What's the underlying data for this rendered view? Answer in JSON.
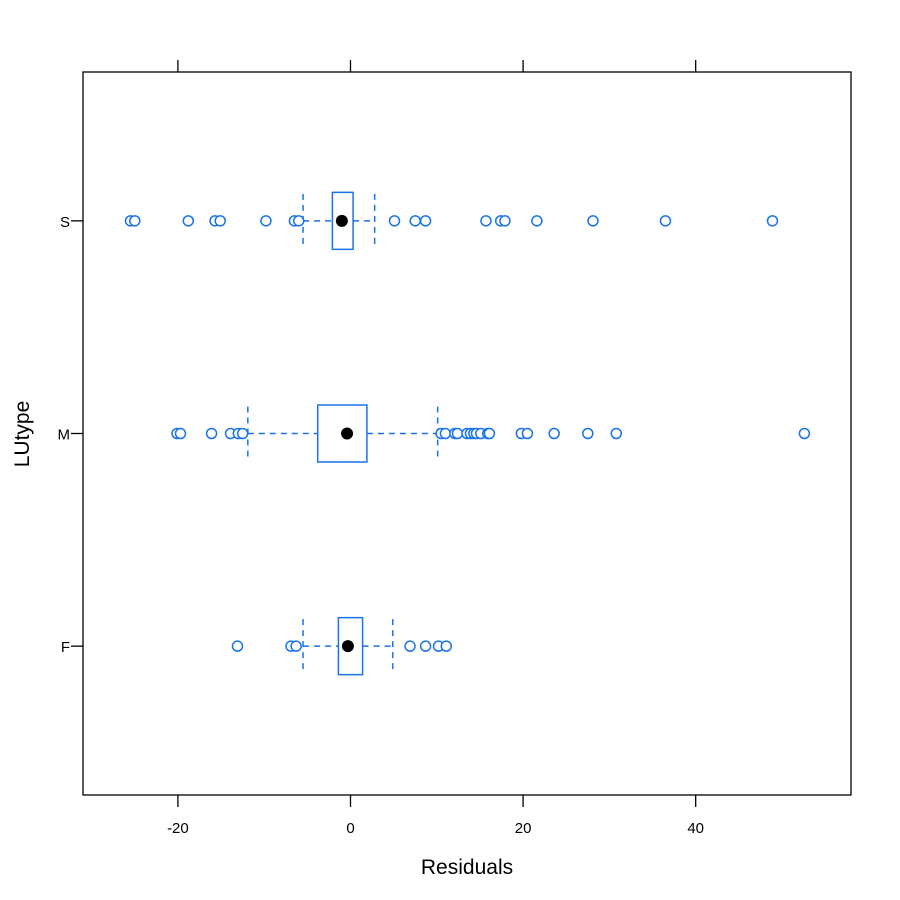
{
  "chart_data": {
    "type": "boxplot",
    "orientation": "horizontal",
    "xlabel": "Residuals",
    "ylabel": "LUtype",
    "xlim": [
      -31,
      58
    ],
    "x_ticks": [
      -20,
      0,
      20,
      40
    ],
    "x_tick_labels": [
      "-20",
      "0",
      "20",
      "40"
    ],
    "categories": [
      "F",
      "M",
      "S"
    ],
    "colors": {
      "box": "#1a73e8",
      "median_dot": "#000000",
      "frame": "#000000"
    },
    "groups": [
      {
        "name": "F",
        "whisker_low": -5.5,
        "q1": -1.4,
        "median": -0.3,
        "q3": 1.4,
        "whisker_high": 4.9,
        "outliers": [
          -13.1,
          -6.9,
          -6.3,
          6.9,
          8.7,
          10.2,
          11.1
        ]
      },
      {
        "name": "M",
        "whisker_low": -11.9,
        "q1": -3.8,
        "median": -0.4,
        "q3": 1.9,
        "whisker_high": 10.1,
        "outliers": [
          -20.1,
          -19.7,
          -16.1,
          -13.9,
          -13.0,
          -12.5,
          10.5,
          11.0,
          12.1,
          12.4,
          13.5,
          13.9,
          14.3,
          14.6,
          15.1,
          15.9,
          16.1,
          19.8,
          20.5,
          23.6,
          27.5,
          30.8,
          52.6
        ]
      },
      {
        "name": "S",
        "whisker_low": -5.5,
        "q1": -2.1,
        "median": -1.0,
        "q3": 0.3,
        "whisker_high": 2.8,
        "outliers": [
          -25.5,
          -25.0,
          -18.8,
          -15.7,
          -15.1,
          -9.8,
          -6.5,
          -6.0,
          5.1,
          7.5,
          8.7,
          15.7,
          17.4,
          17.9,
          21.6,
          28.1,
          36.5,
          48.9
        ]
      }
    ]
  }
}
